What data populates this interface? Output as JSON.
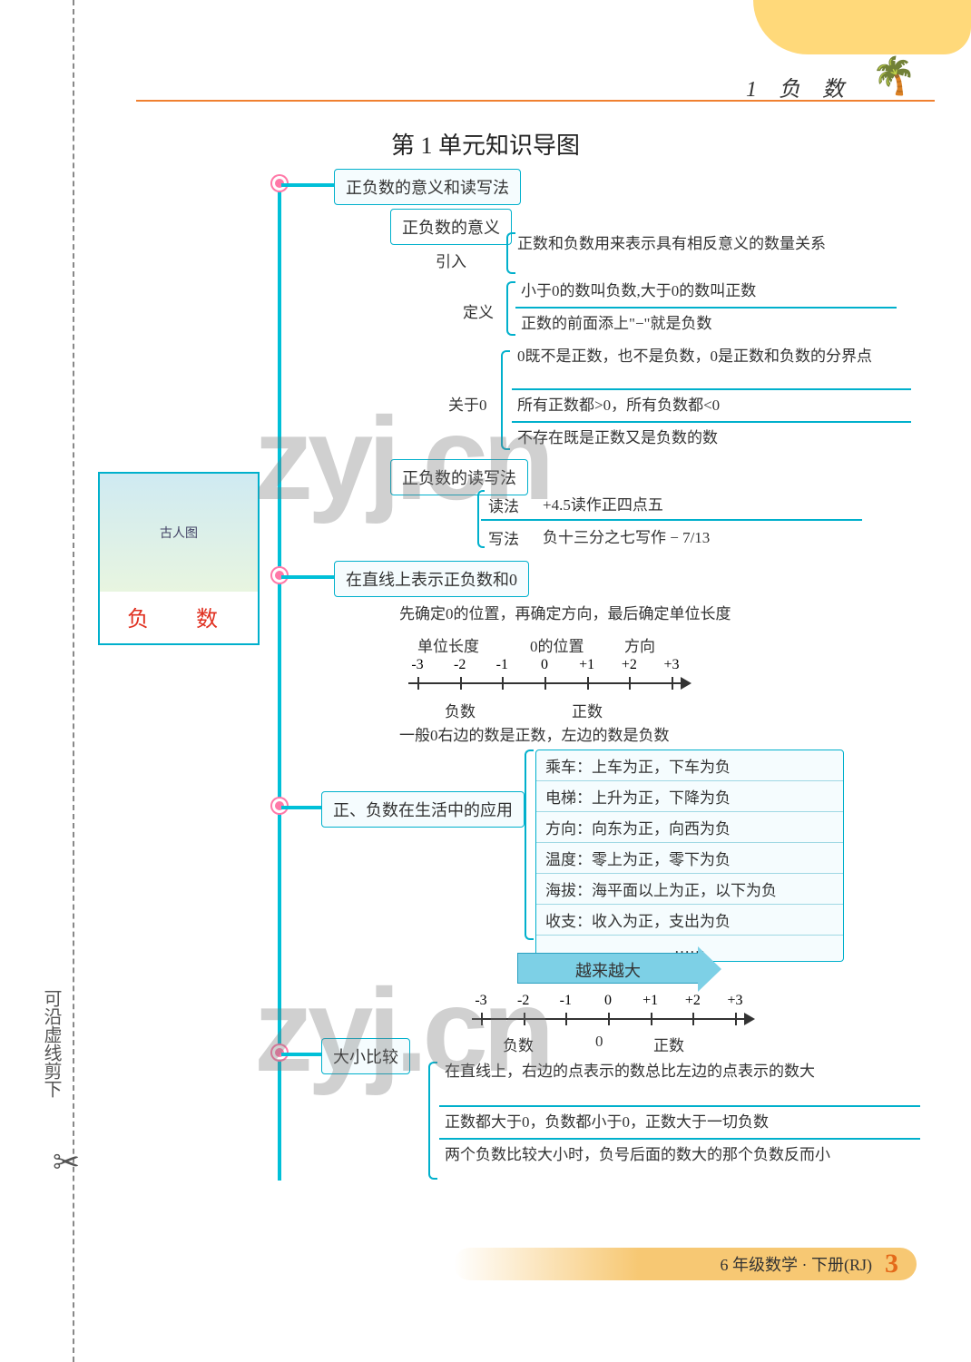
{
  "colors": {
    "accent": "#00b0cc",
    "spine": "#00c0d8",
    "dot": "#ff79a8",
    "header_line": "#f08030",
    "cloud": "#ffd97a",
    "root_text": "#e03020",
    "footer_bg": "#f7c873",
    "page_num": "#e46a1a",
    "watermark": "rgba(120,120,120,0.35)"
  },
  "header": {
    "chapter": "1　负　数"
  },
  "title": "第 1 单元知识导图",
  "cut_label": "可沿虚线剪下",
  "root": {
    "label": "负　数",
    "img_alt": "古人图"
  },
  "branches": {
    "b1": {
      "title": "正负数的意义和读写法",
      "meaning": {
        "title": "正负数的意义",
        "intro_lbl": "引入",
        "intro_txt": "正数和负数用来表示具有相反意义的数量关系",
        "def_lbl": "定义",
        "def1": "小于0的数叫负数,大于0的数叫正数",
        "def2": "正数的前面添上\"−\"就是负数",
        "zero_lbl": "关于0",
        "zero1": "0既不是正数，也不是负数，0是正数和负数的分界点",
        "zero2": "所有正数都>0，所有负数都<0",
        "zero3": "不存在既是正数又是负数的数"
      },
      "rw": {
        "title": "正负数的读写法",
        "read_lbl": "读法",
        "read_txt": "+4.5读作正四点五",
        "write_lbl": "写法",
        "write_txt": "负十三分之七写作 − 7/13"
      }
    },
    "b2": {
      "title": "在直线上表示正负数和0",
      "step": "先确定0的位置，再确定方向，最后确定单位长度",
      "labels": {
        "unit": "单位长度",
        "zero": "0的位置",
        "dir": "方向"
      },
      "numline": {
        "ticks": [
          "-3",
          "-2",
          "-1",
          "0",
          "+1",
          "+2",
          "+3"
        ],
        "left_lbl": "负数",
        "right_lbl": "正数"
      },
      "note": "一般0右边的数是正数，左边的数是负数"
    },
    "b3": {
      "title": "正、负数在生活中的应用",
      "items": [
        "乘车：上车为正，下车为负",
        "电梯：上升为正，下降为负",
        "方向：向东为正，向西为负",
        "温度：零上为正，零下为负",
        "海拔：海平面以上为正，以下为负",
        "收支：收入为正，支出为负",
        "……"
      ]
    },
    "b4": {
      "title": "大小比较",
      "arrow_label": "越来越大",
      "numline": {
        "ticks": [
          "-3",
          "-2",
          "-1",
          "0",
          "+1",
          "+2",
          "+3"
        ],
        "left_lbl": "负数",
        "mid_lbl": "0",
        "right_lbl": "正数"
      },
      "r1": "在直线上，右边的点表示的数总比左边的点表示的数大",
      "r2": "正数都大于0，负数都小于0，正数大于一切负数",
      "r3": "两个负数比较大小时，负号后面的数大的那个负数反而小"
    }
  },
  "footer": {
    "text": "6 年级数学 · 下册(RJ)",
    "page": "3"
  },
  "watermark": "zyj.cn"
}
